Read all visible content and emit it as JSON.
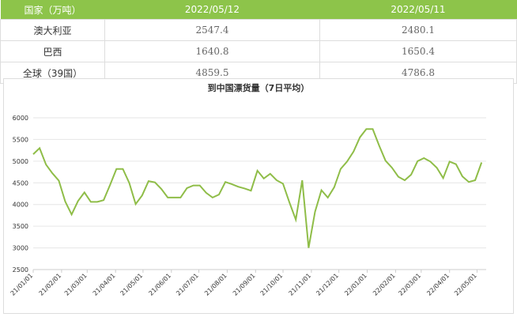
{
  "table": {
    "header": [
      "国家（万吨）",
      "2022/05/12",
      "2022/05/11"
    ],
    "rows": [
      [
        "澳大利亚",
        "2547.4",
        "2480.1"
      ],
      [
        "巴西",
        "1640.8",
        "1650.4"
      ],
      [
        "全球（39国）",
        "4859.5",
        "4786.8"
      ]
    ]
  },
  "chart_data": {
    "type": "line",
    "title": "到中国漂货量（7日平均）",
    "x": [
      "21/01/01",
      "21/01/08",
      "21/01/15",
      "21/01/22",
      "21/01/29",
      "21/02/05",
      "21/02/12",
      "21/02/19",
      "21/02/26",
      "21/03/05",
      "21/03/12",
      "21/03/19",
      "21/03/26",
      "21/04/02",
      "21/04/09",
      "21/04/16",
      "21/04/23",
      "21/04/30",
      "21/05/07",
      "21/05/14",
      "21/05/21",
      "21/05/28",
      "21/06/04",
      "21/06/11",
      "21/06/18",
      "21/06/25",
      "21/07/02",
      "21/07/09",
      "21/07/16",
      "21/07/23",
      "21/07/30",
      "21/08/06",
      "21/08/13",
      "21/08/20",
      "21/08/27",
      "21/09/03",
      "21/09/10",
      "21/09/17",
      "21/09/24",
      "21/10/01",
      "21/10/08",
      "21/10/15",
      "21/10/22",
      "21/10/29",
      "21/11/05",
      "21/11/12",
      "21/11/19",
      "21/11/26",
      "21/12/03",
      "21/12/10",
      "21/12/17",
      "21/12/24",
      "21/12/31",
      "22/01/07",
      "22/01/14",
      "22/01/21",
      "22/01/28",
      "22/02/04",
      "22/02/11",
      "22/02/18",
      "22/02/25",
      "22/03/04",
      "22/03/11",
      "22/03/18",
      "22/03/25",
      "22/04/01",
      "22/04/08",
      "22/04/15",
      "22/04/22",
      "22/04/29",
      "22/05/06"
    ],
    "series": [
      {
        "color": "#8fbd48",
        "values": [
          5160,
          5300,
          4920,
          4720,
          4550,
          4070,
          3770,
          4080,
          4280,
          4060,
          4060,
          4100,
          4450,
          4820,
          4820,
          4500,
          4010,
          4210,
          4540,
          4510,
          4360,
          4160,
          4160,
          4160,
          4380,
          4440,
          4440,
          4270,
          4160,
          4230,
          4520,
          4470,
          4410,
          4370,
          4320,
          4780,
          4600,
          4710,
          4560,
          4480,
          4050,
          3650,
          4560,
          3000,
          3830,
          4330,
          4160,
          4400,
          4820,
          4990,
          5220,
          5550,
          5740,
          5740,
          5360,
          5010,
          4850,
          4640,
          4560,
          4690,
          5000,
          5070,
          4990,
          4850,
          4610,
          4990,
          4930,
          4650,
          4520,
          4560,
          4970
        ]
      }
    ],
    "xlim": [
      "21/01/01",
      "22/05/11"
    ],
    "xticks": [
      "21/01/01",
      "21/02/01",
      "21/03/01",
      "21/04/01",
      "21/05/01",
      "21/06/01",
      "21/07/01",
      "21/08/01",
      "21/09/01",
      "21/10/01",
      "21/11/01",
      "21/12/01",
      "22/01/01",
      "22/02/01",
      "22/03/01",
      "22/04/01",
      "22/05/01"
    ],
    "ylim": [
      2500,
      6000
    ],
    "yticks": [
      2500,
      3000,
      3500,
      4000,
      4500,
      5000,
      5500,
      6000
    ],
    "grid": true
  }
}
